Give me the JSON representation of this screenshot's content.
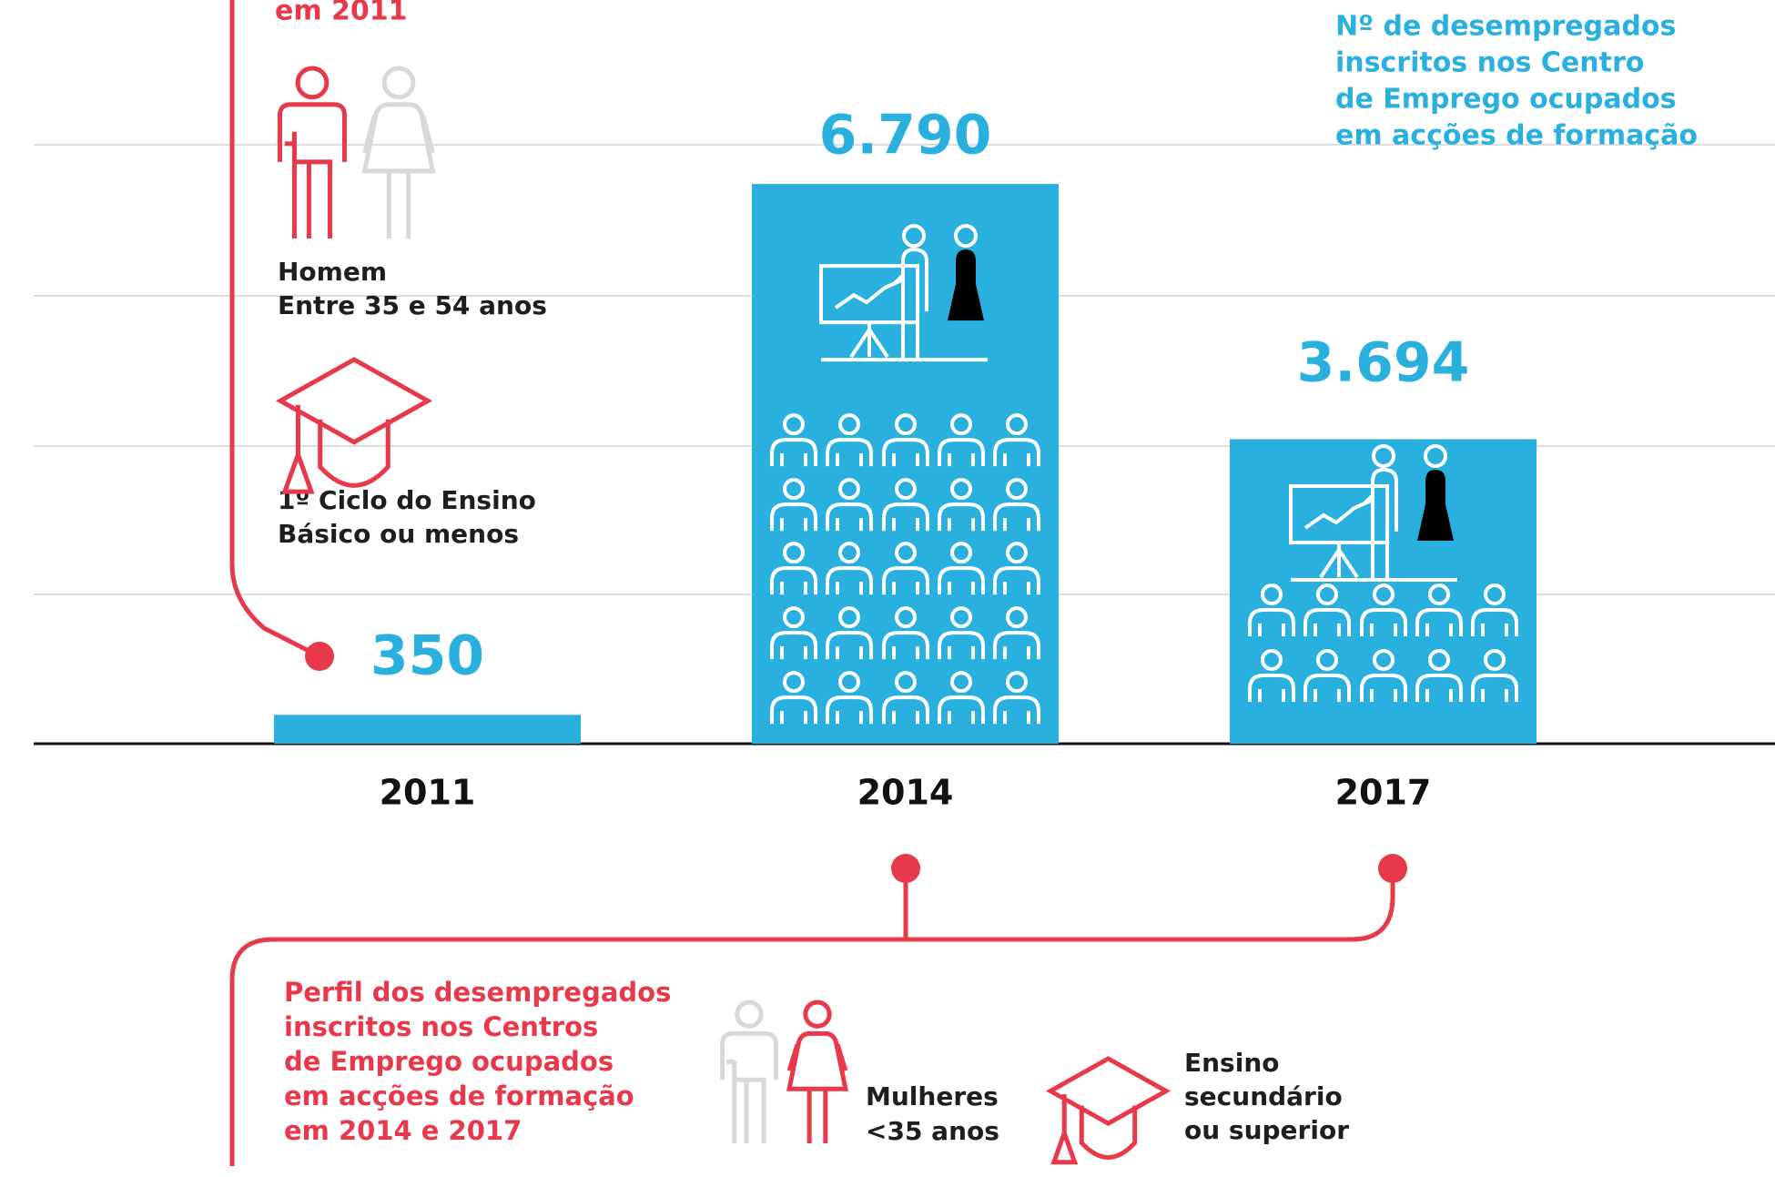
{
  "chart_data": {
    "type": "bar",
    "categories": [
      "2011",
      "2014",
      "2017"
    ],
    "values": [
      350,
      6790,
      3694
    ],
    "value_labels": [
      "350",
      "6.790",
      "3.694"
    ],
    "color": "#29b0de",
    "ylim": [
      0,
      9000
    ],
    "series_note": [
      "Nº de desempregados",
      "inscritos nos Centro",
      "de Emprego ocupados",
      "em acções de formação"
    ],
    "profile_2011": {
      "title": [
        "em 2011"
      ],
      "gender_age": [
        "Homem",
        "Entre 35 e 54 anos"
      ],
      "education": [
        "1º Ciclo do Ensino",
        "Básico ou menos"
      ]
    },
    "profile_2014_2017": {
      "title": [
        "Perfil dos desempregados",
        "inscritos nos Centros",
        "de Emprego ocupados",
        "em acções de formação",
        "em 2014 e 2017"
      ],
      "gender_age": [
        "Mulheres",
        "<35 anos"
      ],
      "education": [
        "Ensino",
        "secundário",
        "ou superior"
      ]
    }
  }
}
